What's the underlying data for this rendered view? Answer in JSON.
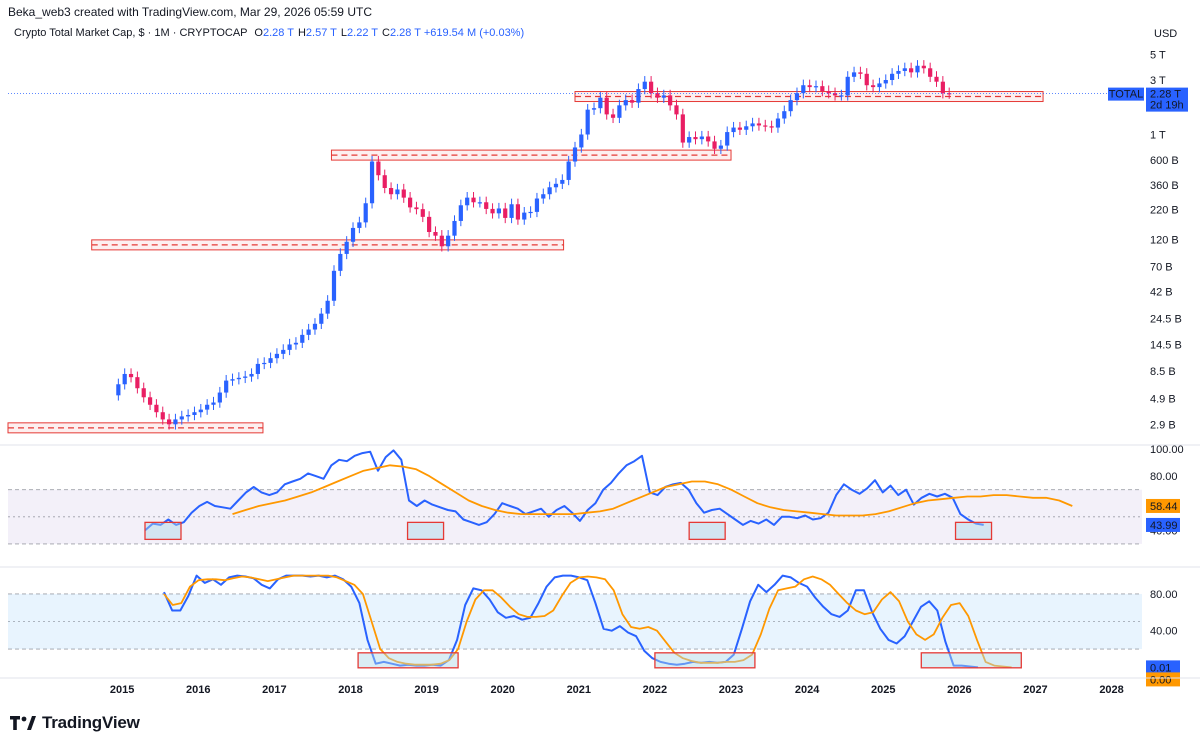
{
  "header": {
    "author_line": "Beka_web3 created with TradingView.com, Mar 29, 2026 05:59 UTC",
    "symbol": "Crypto Total Market Cap, $ · 1M · CRYPTOCAP",
    "ohlc": [
      {
        "k": "O",
        "v": "2.28 T"
      },
      {
        "k": "H",
        "v": "2.57 T"
      },
      {
        "k": "L",
        "v": "2.22 T"
      },
      {
        "k": "C",
        "v": "2.28 T"
      }
    ],
    "change": "+619.54 M (+0.03%)",
    "currency": "USD"
  },
  "brand": {
    "name": "TradingView",
    "icon": "tradingview-logo-icon"
  },
  "price_labels": {
    "total_tag": "TOTAL",
    "last_price": "2.28 T",
    "countdown": "2d 19h"
  },
  "colors": {
    "up": "#2962ff",
    "down": "#e91e63",
    "rsi": "#2962ff",
    "rsi_ma": "#ff9800",
    "zone": "#e53935"
  },
  "chart_data": [
    {
      "type": "candlestick",
      "title": "Crypto Total Market Cap, $ · 1M · CRYPTOCAP",
      "scale": "log",
      "y_ticks": [
        "5 T",
        "3 T",
        "1 T",
        "600 B",
        "360 B",
        "220 B",
        "120 B",
        "70 B",
        "42 B",
        "24.5 B",
        "14.5 B",
        "8.5 B",
        "4.9 B",
        "2.9 B"
      ],
      "x_ticks": [
        "2015",
        "2016",
        "2017",
        "2018",
        "2019",
        "2020",
        "2021",
        "2022",
        "2023",
        "2024",
        "2025",
        "2026",
        "2027",
        "2028"
      ],
      "x_range": [
        2013.5,
        2028.4
      ],
      "last_value": "2.28 T",
      "support_zones": [
        {
          "from": 2013.5,
          "to": 2016.85,
          "value_b": 2.7
        },
        {
          "from": 2014.6,
          "to": 2020.8,
          "value_b": 108
        },
        {
          "from": 2017.75,
          "to": 2023.0,
          "value_b": 660
        },
        {
          "from": 2020.95,
          "to": 2027.1,
          "value_b": 2150
        }
      ],
      "monthly_close_b": [
        6.5,
        8,
        7.5,
        6,
        5,
        4.3,
        3.7,
        3.2,
        2.9,
        3.2,
        3.4,
        3.5,
        3.7,
        3.9,
        4.3,
        4.5,
        5.5,
        7,
        7.2,
        7.4,
        7.6,
        8,
        9.8,
        10,
        11,
        12,
        13,
        14.5,
        15,
        17.6,
        19.6,
        22,
        27,
        35,
        64,
        90,
        115,
        152,
        170,
        250,
        580,
        440,
        340,
        300,
        330,
        280,
        230,
        222,
        190,
        140,
        130,
        105,
        130,
        175,
        240,
        280,
        255,
        255,
        223,
        204,
        225,
        186,
        245,
        180,
        207,
        210,
        275,
        300,
        345,
        370,
        400,
        580,
        770,
        1000,
        1650,
        1700,
        2100,
        1500,
        1400,
        1800,
        2000,
        1900,
        2500,
        2900,
        2300,
        2100,
        2200,
        1800,
        1500,
        850,
        950,
        910,
        960,
        870,
        750,
        800,
        1050,
        1150,
        1100,
        1180,
        1250,
        1200,
        1180,
        1150,
        1380,
        1600,
        2000,
        2300,
        2700,
        2600,
        2650,
        2400,
        2300,
        2200,
        2200,
        3200,
        3500,
        3400,
        2700,
        2600,
        2800,
        3000,
        3400,
        3600,
        3800,
        3500,
        4000,
        3800,
        3200,
        2900,
        2300,
        2280
      ]
    },
    {
      "type": "line",
      "y_ticks": [
        "100.00",
        "80.00",
        "40.00"
      ],
      "bands": {
        "upper": 70,
        "middle": 50,
        "lower": 30
      },
      "y_range": [
        27,
        100
      ],
      "x_range": [
        2013.5,
        2028.4
      ],
      "series": [
        {
          "color": "#2962ff",
          "last_label": "43.99",
          "values": [
            40,
            45,
            44,
            48,
            44,
            46,
            53,
            58,
            61,
            58,
            57,
            56,
            62,
            68,
            72,
            68,
            66,
            68,
            74,
            76,
            78,
            82,
            80,
            78,
            88,
            92,
            91,
            95,
            97,
            98,
            84,
            94,
            99,
            92,
            62,
            58,
            62,
            59,
            57,
            55,
            54,
            48,
            46,
            44,
            46,
            52,
            60,
            58,
            56,
            52,
            54,
            56,
            50,
            55,
            58,
            53,
            47,
            55,
            60,
            70,
            75,
            82,
            88,
            91,
            95,
            68,
            66,
            72,
            74,
            75,
            70,
            60,
            53,
            55,
            56,
            52,
            48,
            44,
            47,
            45,
            48,
            44,
            50,
            50,
            49,
            51,
            48,
            49,
            53,
            66,
            74,
            70,
            67,
            71,
            77,
            68,
            73,
            66,
            70,
            59,
            64,
            67,
            65,
            67,
            64,
            52,
            48,
            45,
            44
          ]
        },
        {
          "color": "#ff9800",
          "last_label": "58.44",
          "values": [
            52,
            55,
            58,
            60,
            62,
            65,
            68,
            72,
            76,
            80,
            84,
            86,
            88,
            87,
            85,
            80,
            74,
            68,
            62,
            58,
            55,
            53,
            52,
            52,
            52,
            52,
            52,
            53,
            54,
            56,
            60,
            64,
            68,
            72,
            74,
            76,
            76,
            74,
            70,
            65,
            60,
            57,
            55,
            54,
            53,
            52,
            51,
            51,
            51,
            52,
            54,
            57,
            60,
            62,
            63,
            64,
            65,
            65,
            66,
            66,
            65,
            64,
            64,
            62,
            58
          ]
        }
      ],
      "marked_zones": [
        2015.3,
        2018.75,
        2022.45,
        2025.95
      ]
    },
    {
      "type": "line",
      "y_ticks": [
        "80.00",
        "40.00"
      ],
      "bands": {
        "upper": 80,
        "middle": 50,
        "lower": 20
      },
      "y_range": [
        -5,
        105
      ],
      "x_range": [
        2013.5,
        2028.4
      ],
      "series": [
        {
          "color": "#2962ff",
          "last_label": "0.01",
          "values": [
            82,
            62,
            62,
            78,
            100,
            92,
            96,
            90,
            98,
            100,
            99,
            97,
            90,
            86,
            96,
            100,
            100,
            100,
            99,
            100,
            98,
            100,
            96,
            88,
            70,
            30,
            4,
            6,
            4,
            2,
            3,
            2,
            2,
            3,
            2,
            8,
            30,
            68,
            86,
            84,
            74,
            60,
            54,
            56,
            52,
            54,
            70,
            88,
            98,
            100,
            100,
            98,
            95,
            70,
            42,
            40,
            45,
            38,
            34,
            18,
            10,
            6,
            4,
            3,
            4,
            6,
            5,
            6,
            5,
            6,
            14,
            42,
            72,
            90,
            82,
            90,
            100,
            98,
            92,
            88,
            76,
            66,
            58,
            55,
            62,
            84,
            84,
            60,
            42,
            30,
            26,
            34,
            50,
            66,
            72,
            62,
            28,
            2,
            2,
            1,
            0.01
          ]
        },
        {
          "color": "#ff9800",
          "last_label": "0.00",
          "values": [
            80,
            68,
            70,
            88,
            95,
            96,
            96,
            95,
            97,
            99,
            98,
            96,
            94,
            96,
            98,
            100,
            100,
            100,
            100,
            100,
            98,
            94,
            90,
            80,
            50,
            20,
            10,
            6,
            4,
            3,
            3,
            3,
            4,
            8,
            20,
            50,
            74,
            84,
            84,
            76,
            66,
            58,
            55,
            55,
            56,
            62,
            78,
            92,
            98,
            99,
            98,
            96,
            84,
            58,
            44,
            42,
            44,
            40,
            28,
            16,
            10,
            7,
            5,
            5,
            5,
            6,
            6,
            8,
            14,
            36,
            64,
            84,
            86,
            88,
            96,
            99,
            96,
            90,
            80,
            70,
            62,
            58,
            60,
            74,
            82,
            72,
            50,
            36,
            30,
            36,
            54,
            68,
            70,
            56,
            30,
            6,
            2,
            1,
            0
          ]
        }
      ],
      "marked_zones": [
        2018.1,
        2022.0,
        2025.5
      ]
    }
  ]
}
